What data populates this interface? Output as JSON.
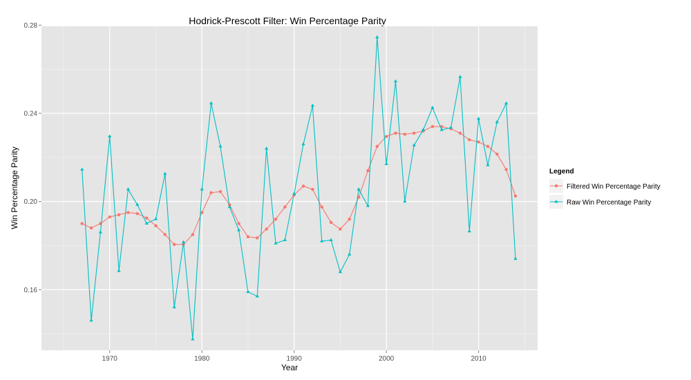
{
  "chart_data": {
    "type": "line",
    "title": "Hodrick-Prescott Filter: Win Percentage Parity",
    "xlabel": "Year",
    "ylabel": "Win Percentage Parity",
    "xlim": [
      1962.6,
      2016.4
    ],
    "ylim": [
      0.1325,
      0.2795
    ],
    "xticks": [
      1970,
      1980,
      1990,
      2000,
      2010
    ],
    "yticks": [
      0.16,
      0.2,
      0.24,
      0.28
    ],
    "xtick_labels": [
      "1970",
      "1980",
      "1990",
      "2000",
      "2010"
    ],
    "ytick_labels": [
      "0.16",
      "0.20",
      "0.24",
      "0.28"
    ],
    "grid": true,
    "legend": {
      "title": "Legend",
      "position": "right"
    },
    "x": [
      1967,
      1968,
      1969,
      1970,
      1971,
      1972,
      1973,
      1974,
      1975,
      1976,
      1977,
      1978,
      1979,
      1980,
      1981,
      1982,
      1983,
      1984,
      1985,
      1986,
      1987,
      1988,
      1989,
      1990,
      1991,
      1992,
      1993,
      1994,
      1995,
      1996,
      1997,
      1998,
      1999,
      2000,
      2001,
      2002,
      2003,
      2004,
      2005,
      2006,
      2007,
      2008,
      2009,
      2010,
      2011,
      2012,
      2013,
      2014
    ],
    "series": [
      {
        "name": "Filtered Win Percentage Parity",
        "color": "#F8766D",
        "marker": "circle",
        "values": [
          0.19,
          0.188,
          0.19,
          0.193,
          0.194,
          0.195,
          0.1945,
          0.1925,
          0.189,
          0.185,
          0.1805,
          0.1805,
          0.185,
          0.195,
          0.204,
          0.2045,
          0.1985,
          0.19,
          0.184,
          0.1835,
          0.1875,
          0.192,
          0.1975,
          0.203,
          0.207,
          0.2055,
          0.1975,
          0.1905,
          0.1875,
          0.192,
          0.202,
          0.214,
          0.225,
          0.2295,
          0.231,
          0.2305,
          0.231,
          0.232,
          0.234,
          0.234,
          0.233,
          0.231,
          0.228,
          0.227,
          0.225,
          0.2215,
          0.2145,
          0.2025
        ]
      },
      {
        "name": "Raw Win Percentage Parity",
        "color": "#00BFC4",
        "marker": "triangle",
        "values": [
          0.2145,
          0.146,
          0.186,
          0.2295,
          0.1685,
          0.2055,
          0.1985,
          0.19,
          0.192,
          0.2125,
          0.152,
          0.1815,
          0.1375,
          0.2055,
          0.2445,
          0.225,
          0.1975,
          0.187,
          0.159,
          0.157,
          0.224,
          0.181,
          0.1825,
          0.2035,
          0.226,
          0.2435,
          0.182,
          0.1825,
          0.168,
          0.176,
          0.2055,
          0.198,
          0.2745,
          0.217,
          0.2545,
          0.2,
          0.2255,
          0.2325,
          0.2425,
          0.2325,
          0.2335,
          0.2565,
          0.1865,
          0.2375,
          0.2165,
          0.236,
          0.2445,
          0.174
        ]
      }
    ]
  }
}
